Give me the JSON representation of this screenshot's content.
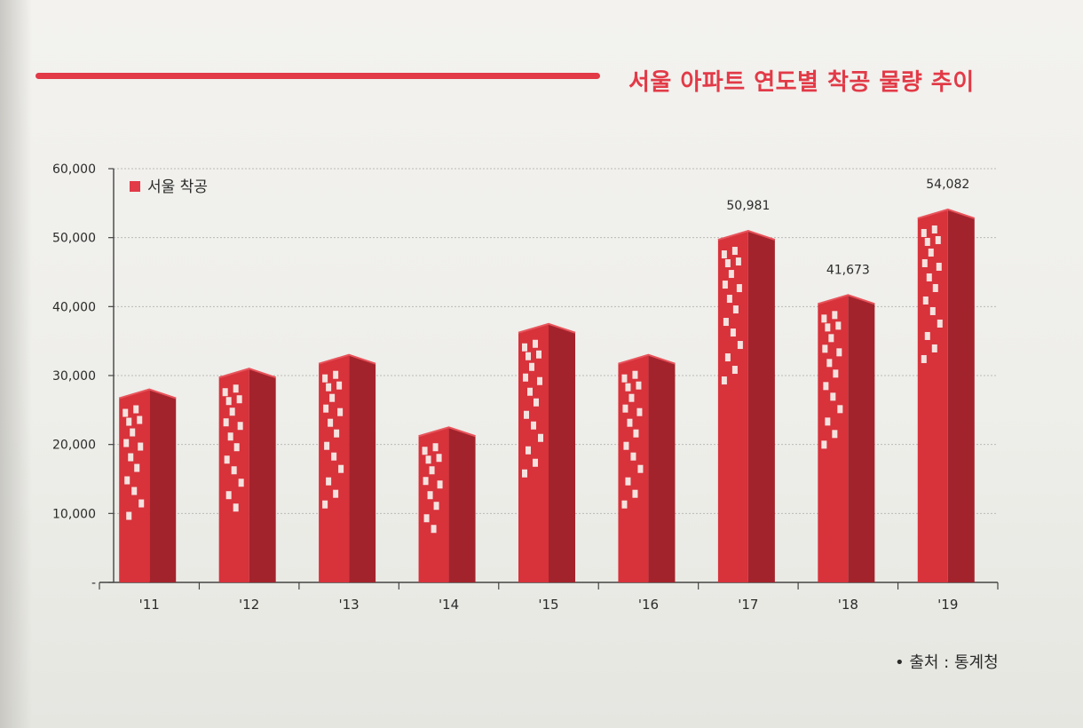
{
  "title": "서울 아파트 연도별 착공 물량 추이",
  "source": "• 출처 : 통계청",
  "colors": {
    "accent": "#e23a47",
    "bar_front": "#d8323b",
    "bar_side": "#a3232c",
    "bar_top": "#e8545b",
    "window": "#f6f1ee"
  },
  "chart_data": {
    "type": "bar",
    "categories": [
      "'11",
      "'12",
      "'13",
      "'14",
      "'15",
      "'16",
      "'17",
      "'18",
      "'19"
    ],
    "series": [
      {
        "name": "서울 착공",
        "values": [
          28000,
          31000,
          33000,
          22500,
          37500,
          33000,
          50981,
          41673,
          54082
        ]
      }
    ],
    "data_labels": [
      "",
      "",
      "",
      "",
      "",
      "",
      "50,981",
      "41,673",
      "54,082"
    ],
    "ylim": [
      0,
      60000
    ],
    "yticks": [
      0,
      10000,
      20000,
      30000,
      40000,
      50000,
      60000
    ],
    "ytick_labels": [
      "-",
      "10,000",
      "20,000",
      "30,000",
      "40,000",
      "50,000",
      "60,000"
    ],
    "xlabel": "",
    "ylabel": "",
    "grid": true,
    "legend_position": "top-left"
  }
}
